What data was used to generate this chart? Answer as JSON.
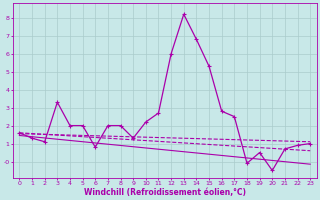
{
  "xlabel": "Windchill (Refroidissement éolien,°C)",
  "background_color": "#c8e8e8",
  "line_color": "#aa00aa",
  "grid_color": "#aacccc",
  "xlim": [
    -0.5,
    23.5
  ],
  "ylim": [
    -0.9,
    8.8
  ],
  "xticks": [
    0,
    1,
    2,
    3,
    4,
    5,
    6,
    7,
    8,
    9,
    10,
    11,
    12,
    13,
    14,
    15,
    16,
    17,
    18,
    19,
    20,
    21,
    22,
    23
  ],
  "yticks": [
    0,
    1,
    2,
    3,
    4,
    5,
    6,
    7,
    8
  ],
  "ytick_labels": [
    "-0",
    "1",
    "2",
    "3",
    "4",
    "5",
    "6",
    "7",
    "8"
  ],
  "line1_x": [
    0,
    1,
    2,
    3,
    4,
    5,
    6,
    7,
    8,
    9,
    10,
    11,
    12,
    13,
    14,
    15,
    16,
    17,
    18,
    19,
    20,
    21,
    22,
    23
  ],
  "line1_y": [
    1.6,
    1.3,
    1.1,
    3.3,
    2.0,
    2.0,
    0.8,
    2.0,
    2.0,
    1.3,
    2.2,
    2.7,
    6.0,
    8.2,
    6.8,
    5.3,
    2.8,
    2.5,
    -0.1,
    0.5,
    -0.5,
    0.7,
    0.9,
    1.0
  ],
  "line2_x": [
    0,
    23
  ],
  "line2_y": [
    1.55,
    1.1
  ],
  "line3_x": [
    0,
    23
  ],
  "line3_y": [
    1.45,
    -0.15
  ],
  "line4_x": [
    0,
    23
  ],
  "line4_y": [
    1.6,
    0.6
  ]
}
